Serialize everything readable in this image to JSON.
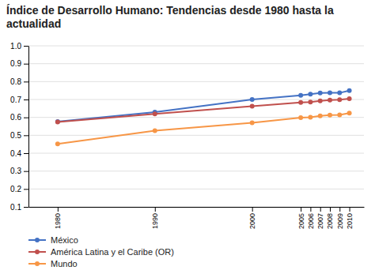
{
  "chart_data": {
    "type": "line",
    "title": "Índice de Desarrollo Humano: Tendencias desde 1980 hasta la actualidad",
    "x": [
      1980,
      1990,
      2000,
      2005,
      2006,
      2007,
      2008,
      2009,
      2010
    ],
    "series": [
      {
        "name": "México",
        "color": "#4472C4",
        "marker": "circle",
        "line_style": "solid",
        "values": [
          0.577,
          0.629,
          0.7,
          0.723,
          0.73,
          0.736,
          0.737,
          0.737,
          0.75
        ]
      },
      {
        "name": "América Latina y el Caribe (OR)",
        "color": "#C0504D",
        "marker": "circle",
        "line_style": "solid",
        "values": [
          0.574,
          0.62,
          0.662,
          0.683,
          0.686,
          0.692,
          0.697,
          0.699,
          0.704
        ]
      },
      {
        "name": "Mundo",
        "color": "#F79646",
        "marker": "circle",
        "line_style": "solid",
        "values": [
          0.452,
          0.526,
          0.57,
          0.599,
          0.601,
          0.608,
          0.613,
          0.614,
          0.624
        ]
      }
    ],
    "xlim": [
      1977,
      2011.5
    ],
    "xticks": [
      1980,
      1990,
      2000,
      2005,
      2006,
      2007,
      2008,
      2009,
      2010
    ],
    "ylim": [
      0.1,
      1.0
    ],
    "yticks": [
      0.1,
      0.2,
      0.3,
      0.4,
      0.5,
      0.6,
      0.7,
      0.8,
      0.9,
      {
        "value": 1.0,
        "label": "1.0"
      }
    ],
    "grid": true,
    "legend": "bottom"
  }
}
